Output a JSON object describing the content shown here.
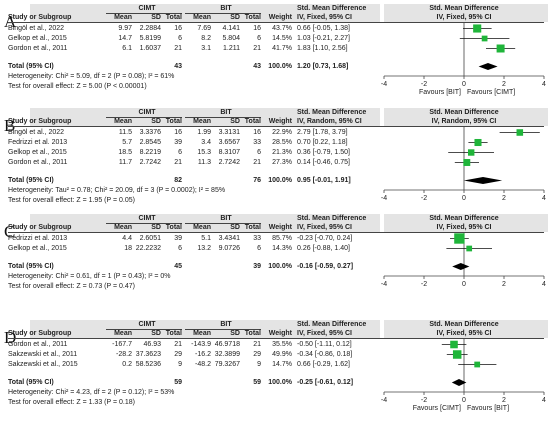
{
  "panels": [
    {
      "letter": "A",
      "group1": "CIMT",
      "group2": "BIT",
      "columns": [
        "Study or Subgroup",
        "Mean",
        "SD",
        "Total",
        "Mean",
        "SD",
        "Total",
        "Weight"
      ],
      "effect_title": "Std. Mean Difference",
      "effect_method": "IV, Fixed, 95% CI",
      "plot_title": "Std. Mean Difference",
      "plot_method": "IV, Fixed, 95% CI",
      "studies": [
        {
          "name": "Bingöl et al., 2022",
          "m1": "9.97",
          "sd1": "2.2884",
          "n1": "16",
          "m2": "7.69",
          "sd2": "4.141",
          "n2": "16",
          "weight": "43.7%",
          "ci_text": "0.66 [-0.05, 1.38]"
        },
        {
          "name": "Gelkop et al., 2015",
          "m1": "14.7",
          "sd1": "5.8199",
          "n1": "6",
          "m2": "8.2",
          "sd2": "5.804",
          "n2": "6",
          "weight": "14.5%",
          "ci_text": "1.03 [-0.21, 2.27]"
        },
        {
          "name": "Gordon et al., 2011",
          "m1": "6.1",
          "sd1": "1.6037",
          "n1": "21",
          "m2": "3.1",
          "sd2": "1.211",
          "n2": "21",
          "weight": "41.7%",
          "ci_text": "1.83 [1.10, 2.56]"
        }
      ],
      "total": {
        "label": "Total (95% CI)",
        "n1": "43",
        "n2": "43",
        "weight": "100.0%",
        "ci_text": "1.20 [0.73, 1.68]"
      },
      "heterogeneity": "Heterogeneity: Chi² = 5.09, df = 2 (P = 0.08); I² = 61%",
      "overall": "Test for overall effect: Z = 5.00 (P < 0.00001)",
      "ticks": [
        "-4",
        "-2",
        "0",
        "2",
        "4"
      ],
      "favours_left": "Favours [BIT]",
      "favours_right": "Favours [CIMT]"
    },
    {
      "letter": "B",
      "group1": "CIMT",
      "group2": "BIT",
      "columns": [
        "Study or Subgroup",
        "Mean",
        "SD",
        "Total",
        "Mean",
        "SD",
        "Total",
        "Weight"
      ],
      "effect_title": "Std. Mean Difference",
      "effect_method": "IV, Random, 95% CI",
      "plot_title": "Std. Mean Difference",
      "plot_method": "IV, Random, 95% CI",
      "studies": [
        {
          "name": "Bingöl et al., 2022",
          "m1": "11.5",
          "sd1": "3.3376",
          "n1": "16",
          "m2": "1.99",
          "sd2": "3.3131",
          "n2": "16",
          "weight": "22.9%",
          "ci_text": "2.79 [1.78, 3.79]"
        },
        {
          "name": "Fedrizzi et al. 2013",
          "m1": "5.7",
          "sd1": "2.8545",
          "n1": "39",
          "m2": "3.4",
          "sd2": "3.6567",
          "n2": "33",
          "weight": "28.5%",
          "ci_text": "0.70 [0.22, 1.18]"
        },
        {
          "name": "Gelkop et al., 2015",
          "m1": "18.5",
          "sd1": "8.2219",
          "n1": "6",
          "m2": "15.3",
          "sd2": "8.3107",
          "n2": "6",
          "weight": "21.3%",
          "ci_text": "0.36 [-0.79, 1.50]"
        },
        {
          "name": "Gordon et al., 2011",
          "m1": "11.7",
          "sd1": "2.7242",
          "n1": "21",
          "m2": "11.3",
          "sd2": "2.7242",
          "n2": "21",
          "weight": "27.3%",
          "ci_text": "0.14 [-0.46, 0.75]"
        }
      ],
      "total": {
        "label": "Total (95% CI)",
        "n1": "82",
        "n2": "76",
        "weight": "100.0%",
        "ci_text": "0.95 [-0.01, 1.91]"
      },
      "heterogeneity": "Heterogeneity: Tau² = 0.78; Chi² = 20.09, df = 3 (P = 0.0002); I² = 85%",
      "overall": "Test for overall effect: Z = 1.95 (P = 0.05)",
      "ticks": [
        "-4",
        "-2",
        "0",
        "2",
        "4"
      ],
      "favours_left": "",
      "favours_right": ""
    },
    {
      "letter": "C",
      "group1": "CIMT",
      "group2": "BIT",
      "columns": [
        "Study or Subgroup",
        "Mean",
        "SD",
        "Total",
        "Mean",
        "SD",
        "Total",
        "Weight"
      ],
      "effect_title": "Std. Mean Difference",
      "effect_method": "IV, Fixed, 95% CI",
      "plot_title": "Std. Mean Difference",
      "plot_method": "IV, Fixed, 95% CI",
      "studies": [
        {
          "name": "Fedrizzi et al. 2013",
          "m1": "4.4",
          "sd1": "2.6051",
          "n1": "39",
          "m2": "5.1",
          "sd2": "3.4341",
          "n2": "33",
          "weight": "85.7%",
          "ci_text": "-0.23 [-0.70, 0.24]"
        },
        {
          "name": "Gelkop et al., 2015",
          "m1": "18",
          "sd1": "22.2232",
          "n1": "6",
          "m2": "13.2",
          "sd2": "9.0726",
          "n2": "6",
          "weight": "14.3%",
          "ci_text": "0.26 [-0.88, 1.40]"
        }
      ],
      "total": {
        "label": "Total (95% CI)",
        "n1": "45",
        "n2": "39",
        "weight": "100.0%",
        "ci_text": "-0.16 [-0.59, 0.27]"
      },
      "heterogeneity": "Heterogeneity: Chi² = 0.61, df = 1 (P = 0.43); I² = 0%",
      "overall": "Test for overall effect: Z = 0.73 (P = 0.47)",
      "ticks": [
        "-4",
        "-2",
        "0",
        "2",
        "4"
      ],
      "favours_left": "",
      "favours_right": ""
    },
    {
      "letter": "D",
      "group1": "CIMT",
      "group2": "BIT",
      "columns": [
        "Study or Subgroup",
        "Mean",
        "SD",
        "Total",
        "Mean",
        "SD",
        "Total",
        "Weight"
      ],
      "effect_title": "Std. Mean Difference",
      "effect_method": "IV, Fixed, 95% CI",
      "plot_title": "Std. Mean Difference",
      "plot_method": "IV, Fixed, 95% CI",
      "studies": [
        {
          "name": "Gordon et al., 2011",
          "m1": "-167.7",
          "sd1": "46.93",
          "n1": "21",
          "m2": "-143.9",
          "sd2": "46.9718",
          "n2": "21",
          "weight": "35.5%",
          "ci_text": "-0.50 [-1.11, 0.12]"
        },
        {
          "name": "Sakzewski et al., 2011",
          "m1": "-28.2",
          "sd1": "37.3623",
          "n1": "29",
          "m2": "-16.2",
          "sd2": "32.3899",
          "n2": "29",
          "weight": "49.9%",
          "ci_text": "-0.34 [-0.86, 0.18]"
        },
        {
          "name": "Sakzewski et al., 2015",
          "m1": "0.2",
          "sd1": "58.5236",
          "n1": "9",
          "m2": "-48.2",
          "sd2": "79.3267",
          "n2": "9",
          "weight": "14.7%",
          "ci_text": "0.66 [-0.29, 1.62]"
        }
      ],
      "total": {
        "label": "Total (95% CI)",
        "n1": "59",
        "n2": "59",
        "weight": "100.0%",
        "ci_text": "-0.25 [-0.61, 0.12]"
      },
      "heterogeneity": "Heterogeneity: Chi² = 4.23, df = 2 (P = 0.12); I² = 53%",
      "overall": "Test for overall effect: Z = 1.33 (P = 0.18)",
      "ticks": [
        "-4",
        "-2",
        "0",
        "2",
        "4"
      ],
      "favours_left": "Favours [CIMT]",
      "favours_right": "Favours [BIT]"
    }
  ],
  "chart_data": [
    {
      "type": "forest",
      "xlim": [
        -4,
        4
      ],
      "ticks": [
        -4,
        -2,
        0,
        2,
        4
      ],
      "studies": [
        {
          "name": "Bingöl et al., 2022",
          "est": 0.66,
          "lo": -0.05,
          "hi": 1.38,
          "weight": 43.7
        },
        {
          "name": "Gelkop et al., 2015",
          "est": 1.03,
          "lo": -0.21,
          "hi": 2.27,
          "weight": 14.5
        },
        {
          "name": "Gordon et al., 2011",
          "est": 1.83,
          "lo": 1.1,
          "hi": 2.56,
          "weight": 41.7
        }
      ],
      "total": {
        "est": 1.2,
        "lo": 0.73,
        "hi": 1.68
      }
    },
    {
      "type": "forest",
      "xlim": [
        -4,
        4
      ],
      "ticks": [
        -4,
        -2,
        0,
        2,
        4
      ],
      "studies": [
        {
          "name": "Bingöl et al., 2022",
          "est": 2.79,
          "lo": 1.78,
          "hi": 3.79,
          "weight": 22.9
        },
        {
          "name": "Fedrizzi et al. 2013",
          "est": 0.7,
          "lo": 0.22,
          "hi": 1.18,
          "weight": 28.5
        },
        {
          "name": "Gelkop et al., 2015",
          "est": 0.36,
          "lo": -0.79,
          "hi": 1.5,
          "weight": 21.3
        },
        {
          "name": "Gordon et al., 2011",
          "est": 0.14,
          "lo": -0.46,
          "hi": 0.75,
          "weight": 27.3
        }
      ],
      "total": {
        "est": 0.95,
        "lo": -0.01,
        "hi": 1.91
      }
    },
    {
      "type": "forest",
      "xlim": [
        -4,
        4
      ],
      "ticks": [
        -4,
        -2,
        0,
        2,
        4
      ],
      "studies": [
        {
          "name": "Fedrizzi et al. 2013",
          "est": -0.23,
          "lo": -0.7,
          "hi": 0.24,
          "weight": 85.7
        },
        {
          "name": "Gelkop et al., 2015",
          "est": 0.26,
          "lo": -0.88,
          "hi": 1.4,
          "weight": 14.3
        }
      ],
      "total": {
        "est": -0.16,
        "lo": -0.59,
        "hi": 0.27
      }
    },
    {
      "type": "forest",
      "xlim": [
        -4,
        4
      ],
      "ticks": [
        -4,
        -2,
        0,
        2,
        4
      ],
      "studies": [
        {
          "name": "Gordon et al., 2011",
          "est": -0.5,
          "lo": -1.11,
          "hi": 0.12,
          "weight": 35.5
        },
        {
          "name": "Sakzewski et al., 2011",
          "est": -0.34,
          "lo": -0.86,
          "hi": 0.18,
          "weight": 49.9
        },
        {
          "name": "Sakzewski et al., 2015",
          "est": 0.66,
          "lo": -0.29,
          "hi": 1.62,
          "weight": 14.7
        }
      ],
      "total": {
        "est": -0.25,
        "lo": -0.61,
        "hi": 0.12
      }
    }
  ],
  "colors": {
    "marker": "#1fb53a",
    "diamond": "#000000",
    "header_bg": "#e4e4e4",
    "line": "#444444"
  }
}
